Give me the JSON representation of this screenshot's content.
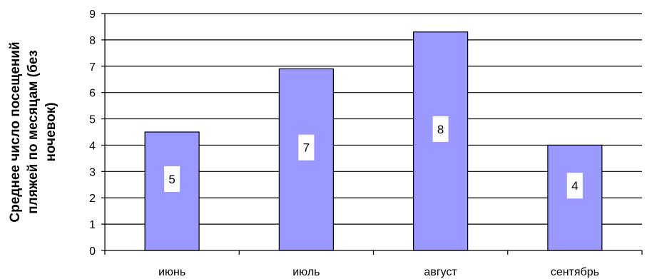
{
  "chart_data": {
    "type": "bar",
    "categories": [
      "июнь",
      "июль",
      "август",
      "сентябрь"
    ],
    "values": [
      4.5,
      6.9,
      8.3,
      4.0
    ],
    "data_labels": [
      "5",
      "7",
      "8",
      "4"
    ],
    "ylabel_lines": [
      "Среднее число посещений",
      "пляжей по месяцам (без",
      "ночевок)"
    ],
    "xlabel": "",
    "ylim": [
      0,
      9
    ],
    "yticks": [
      0,
      1,
      2,
      3,
      4,
      5,
      6,
      7,
      8,
      9
    ],
    "grid": true,
    "legend": "none",
    "bar_color": "#9999ff",
    "bar_stroke": "#000000"
  }
}
